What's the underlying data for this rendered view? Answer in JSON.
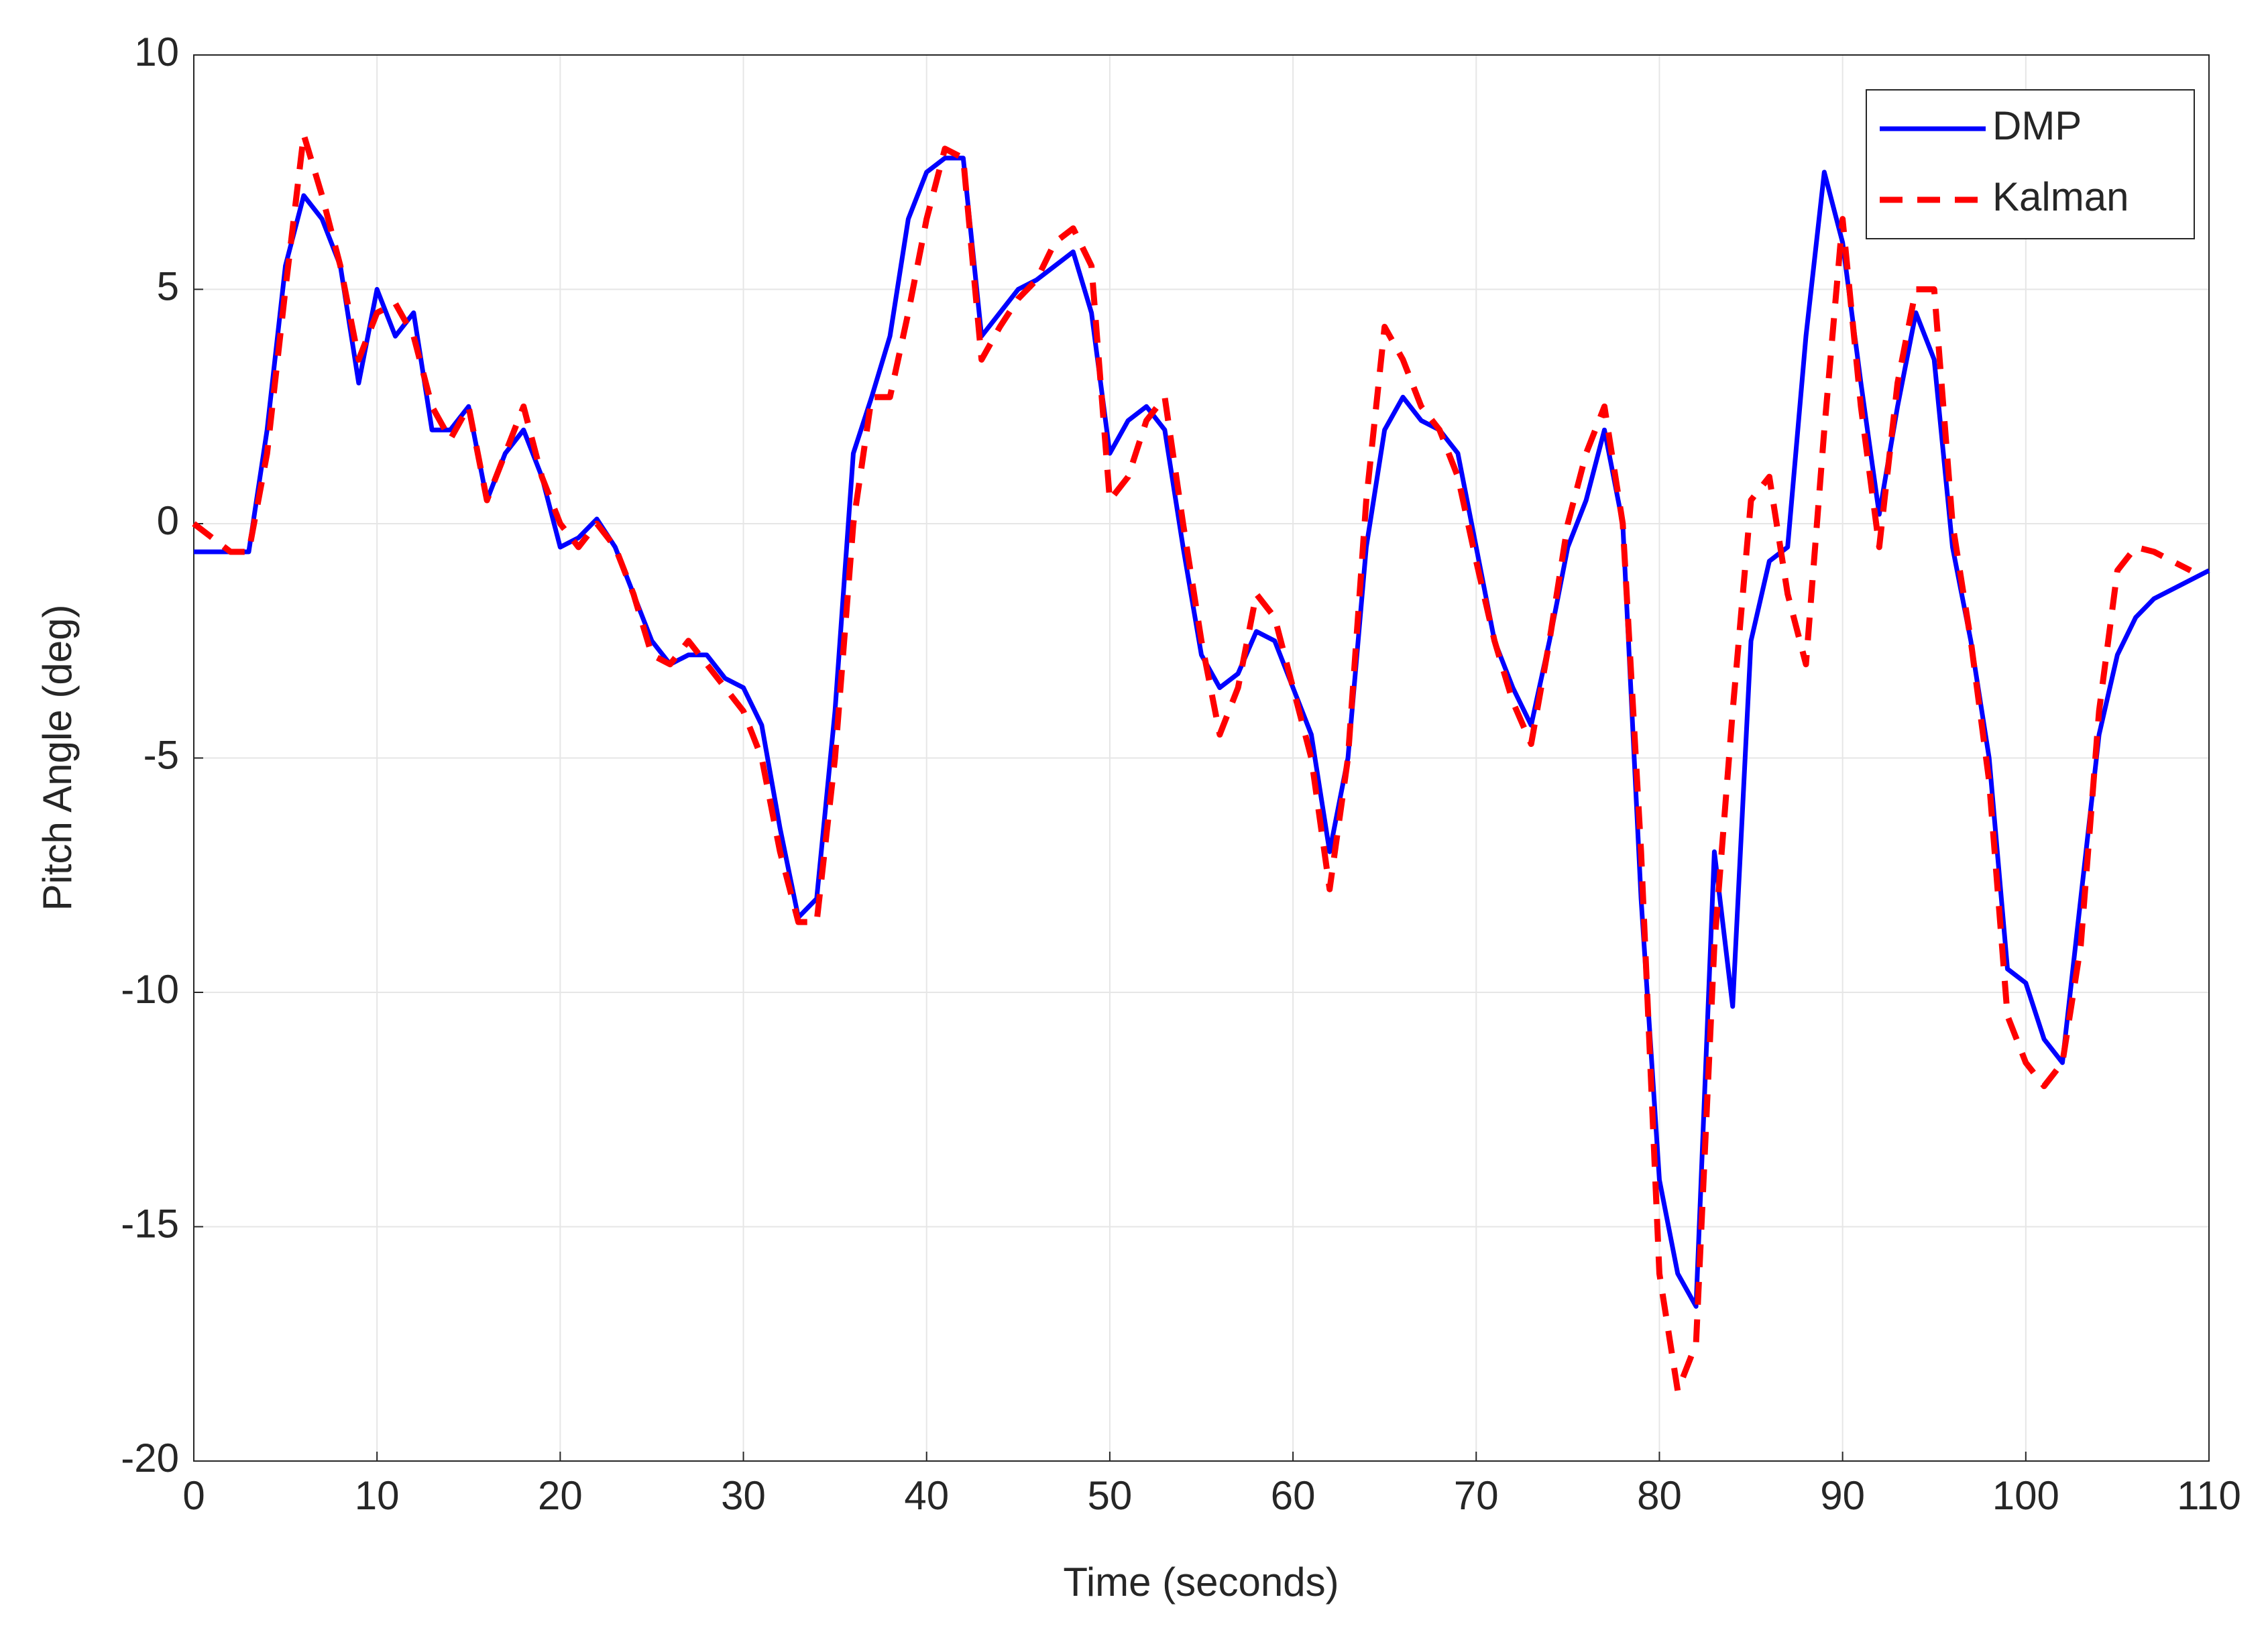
{
  "chart_data": {
    "type": "line",
    "xlabel": "Time (seconds)",
    "ylabel": "Pitch Angle (deg)",
    "x": [
      0,
      1,
      2,
      3,
      4,
      5,
      6,
      7,
      8,
      9,
      10,
      11,
      12,
      13,
      14,
      15,
      16,
      17,
      18,
      19,
      20,
      21,
      22,
      23,
      24,
      25,
      26,
      27,
      28,
      29,
      30,
      31,
      32,
      33,
      34,
      35,
      36,
      37,
      38,
      39,
      40,
      41,
      42,
      43,
      44,
      45,
      46,
      47,
      48,
      49,
      50,
      51,
      52,
      53,
      54,
      55,
      56,
      57,
      58,
      59,
      60,
      61,
      62,
      63,
      64,
      65,
      66,
      67,
      68,
      69,
      70,
      71,
      72,
      73,
      74,
      75,
      76,
      77,
      78,
      79,
      80,
      81,
      82,
      83,
      84,
      85,
      86,
      87,
      88,
      89,
      90,
      91,
      92,
      93,
      94,
      95,
      96,
      97,
      98,
      99,
      100,
      101,
      102,
      103,
      104,
      105,
      106,
      107,
      108,
      109,
      110
    ],
    "series": [
      {
        "name": "DMP",
        "color": "#0000ff",
        "dash": false,
        "values": [
          -0.6,
          -0.6,
          -0.6,
          -0.6,
          2.0,
          5.5,
          7.0,
          6.5,
          5.5,
          3.0,
          5.0,
          4.0,
          4.5,
          2.0,
          2.0,
          2.5,
          0.5,
          1.5,
          2.0,
          1.0,
          -0.5,
          -0.3,
          0.1,
          -0.5,
          -1.5,
          -2.5,
          -3.0,
          -2.8,
          -2.8,
          -3.3,
          -3.5,
          -4.3,
          -6.5,
          -8.4,
          -8.0,
          -4.0,
          1.5,
          2.7,
          4.0,
          6.5,
          7.5,
          7.8,
          7.8,
          4.0,
          4.5,
          5.0,
          5.2,
          5.5,
          5.8,
          4.5,
          1.5,
          2.2,
          2.5,
          2.0,
          -0.5,
          -2.8,
          -3.5,
          -3.2,
          -2.3,
          -2.5,
          -3.5,
          -4.5,
          -7.0,
          -5.0,
          -0.5,
          2.0,
          2.7,
          2.2,
          2.0,
          1.5,
          -0.5,
          -2.5,
          -3.5,
          -4.3,
          -2.5,
          -0.5,
          0.5,
          2.0,
          0.0,
          -8.0,
          -14.0,
          -16.0,
          -16.7,
          -7.0,
          -10.3,
          -2.5,
          -0.8,
          -0.5,
          4.0,
          7.5,
          6.0,
          3.0,
          0.2,
          2.5,
          4.5,
          3.5,
          -0.5,
          -2.5,
          -5.0,
          -9.5,
          -9.8,
          -11.0,
          -11.5,
          -8.0,
          -4.5,
          -2.8,
          -2.0,
          -1.6,
          -1.4,
          -1.2,
          -1.0
        ]
      },
      {
        "name": "Kalman",
        "color": "#ff0000",
        "dash": true,
        "values": [
          0.0,
          -0.3,
          -0.6,
          -0.6,
          1.5,
          5.0,
          8.3,
          7.0,
          5.5,
          3.5,
          4.5,
          4.7,
          4.0,
          2.5,
          1.8,
          2.5,
          0.5,
          1.5,
          2.5,
          1.0,
          0.0,
          -0.5,
          0.0,
          -0.5,
          -1.5,
          -2.8,
          -3.0,
          -2.5,
          -3.0,
          -3.5,
          -4.0,
          -5.0,
          -7.0,
          -8.5,
          -8.5,
          -5.0,
          0.0,
          2.7,
          2.7,
          4.5,
          6.5,
          8.0,
          7.8,
          3.5,
          4.2,
          4.8,
          5.2,
          6.0,
          6.3,
          5.5,
          0.5,
          1.0,
          2.2,
          2.7,
          0.0,
          -2.5,
          -4.5,
          -3.5,
          -1.5,
          -2.0,
          -3.5,
          -5.0,
          -7.8,
          -5.0,
          0.5,
          4.2,
          3.5,
          2.5,
          2.0,
          1.0,
          -0.8,
          -2.5,
          -3.8,
          -4.7,
          -2.5,
          0.0,
          1.5,
          2.5,
          0.0,
          -7.0,
          -16.0,
          -18.5,
          -17.5,
          -9.0,
          -4.0,
          0.5,
          1.0,
          -1.5,
          -3.0,
          2.0,
          6.5,
          2.5,
          -0.5,
          3.0,
          5.0,
          5.0,
          0.0,
          -2.5,
          -5.5,
          -10.5,
          -11.5,
          -12.0,
          -11.5,
          -9.0,
          -4.0,
          -1.0,
          -0.5,
          -0.6,
          -0.8,
          -1.0,
          null
        ]
      }
    ],
    "xlim": [
      0,
      110
    ],
    "xticks": [
      0,
      10,
      20,
      30,
      40,
      50,
      60,
      70,
      80,
      90,
      100,
      110
    ],
    "ylim": [
      -20,
      10
    ],
    "yticks": [
      -20,
      -15,
      -10,
      -5,
      0,
      5,
      10
    ],
    "grid": true,
    "legend": "upper right"
  }
}
